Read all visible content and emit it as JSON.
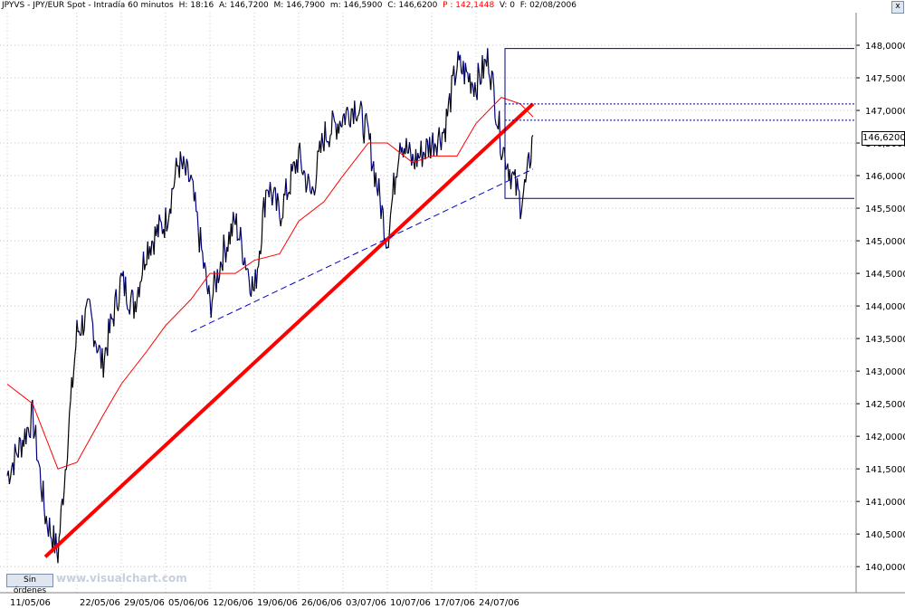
{
  "header": {
    "instrument": "JPYVS - JPY/EUR Spot - Intradía 60 minutos",
    "high": "H: 18:16",
    "ask": "A: 146,7200",
    "mid": "M: 146,7900",
    "min": "m: 146,5900",
    "close": "C: 146,6200",
    "p_value": "P : 142,1448",
    "volume": "V: 0",
    "date": "F: 02/08/2006"
  },
  "close_button": "x",
  "last_price_label": "146,6200",
  "sin_ordenes_button": "Sin órdenes",
  "watermark": "www.visualchart.com",
  "colors": {
    "price_up": "#000000",
    "price_down": "#000080",
    "moving_average": "#ff0000",
    "trendline": "#ff0000",
    "support_dashed": "#0000cc",
    "box": "#000080",
    "gridline": "#c8c8c8"
  },
  "chart_data": {
    "type": "line",
    "title": "",
    "xlabel": "",
    "ylabel": "",
    "ylim": [
      139.6,
      148.5
    ],
    "y_ticks": [
      "148,0000",
      "147,5000",
      "147,0000",
      "146,5000",
      "146,0000",
      "145,5000",
      "145,0000",
      "144,5000",
      "144,0000",
      "143,5000",
      "143,0000",
      "142,5000",
      "142,0000",
      "141,5000",
      "141,0000",
      "140,5000",
      "140,0000"
    ],
    "x_tick_labels": [
      "11/05/06",
      "22/05/06",
      "29/05/06",
      "05/06/06",
      "12/06/06",
      "19/06/06",
      "26/06/06",
      "03/07/06",
      "10/07/06",
      "17/07/06",
      "24/07/06"
    ],
    "grid": true,
    "series": [
      {
        "kind": "price",
        "x": [
          "11/05/06",
          "15/05/06",
          "17/05/06",
          "19/05/06",
          "22/05/06",
          "24/05/06",
          "26/05/06",
          "29/05/06",
          "31/05/06",
          "02/06/06",
          "05/06/06",
          "07/06/06",
          "09/06/06",
          "12/06/06",
          "14/06/06",
          "16/06/06",
          "19/06/06",
          "21/06/06",
          "23/06/06",
          "26/06/06",
          "28/06/06",
          "30/06/06",
          "03/07/06",
          "05/07/06",
          "07/07/06",
          "10/07/06",
          "12/07/06",
          "14/07/06",
          "17/07/06",
          "19/07/06",
          "21/07/06",
          "24/07/06",
          "26/07/06",
          "28/07/06",
          "31/07/06",
          "01/08/06",
          "02/08/06"
        ],
        "values": [
          141.4,
          142.3,
          140.8,
          140.2,
          143.6,
          143.9,
          143.1,
          144.4,
          144.0,
          144.9,
          145.3,
          146.2,
          145.9,
          144.0,
          144.8,
          145.3,
          144.2,
          145.9,
          145.4,
          146.3,
          145.7,
          146.6,
          146.9,
          147.1,
          146.6,
          145.0,
          146.6,
          146.2,
          146.5,
          146.7,
          147.7,
          147.4,
          147.8,
          146.5,
          145.6,
          145.9,
          146.62
        ]
      },
      {
        "name": "",
        "kind": "moving_average",
        "x": [
          "11/05/06",
          "15/05/06",
          "17/05/06",
          "19/05/06",
          "22/05/06",
          "26/05/06",
          "29/05/06",
          "02/06/06",
          "05/06/06",
          "09/06/06",
          "12/06/06",
          "16/06/06",
          "19/06/06",
          "23/06/06",
          "26/06/06",
          "30/06/06",
          "03/07/06",
          "07/07/06",
          "10/07/06",
          "14/07/06",
          "17/07/06",
          "21/07/06",
          "24/07/06",
          "28/07/06",
          "31/07/06",
          "02/08/06"
        ],
        "values": [
          142.8,
          142.5,
          142.0,
          141.5,
          141.6,
          142.3,
          142.8,
          143.3,
          143.7,
          144.1,
          144.5,
          144.5,
          144.7,
          144.8,
          145.3,
          145.6,
          146.0,
          146.5,
          146.5,
          146.2,
          146.3,
          146.3,
          146.8,
          147.2,
          147.1,
          146.9
        ]
      }
    ],
    "lines": [
      {
        "kind": "trendline",
        "from": {
          "x": "17/05/06",
          "y": 140.15
        },
        "to": {
          "x": "02/08/06",
          "y": 147.1
        }
      },
      {
        "kind": "support_dashed",
        "from": {
          "x": "09/06/06",
          "y": 143.6
        },
        "to": {
          "x": "02/08/06",
          "y": 146.1
        }
      }
    ]
  }
}
